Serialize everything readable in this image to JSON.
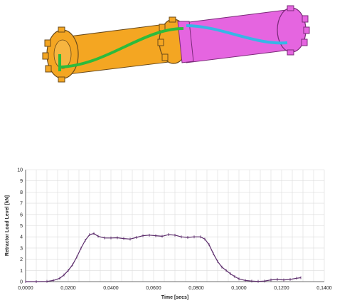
{
  "illustration": {
    "subject": "retractor-spool-assembly",
    "colors": {
      "left_body": "#f4a622",
      "right_body": "#e565e0",
      "strap_green": "#2dbb3c",
      "strap_blue": "#36b6e6",
      "outline": "#6a4a1a"
    }
  },
  "chart_data": {
    "type": "line",
    "title": "",
    "xlabel": "Time [secs]",
    "ylabel": "Retractor Load Level [kN]",
    "xlim": [
      0,
      0.14
    ],
    "ylim": [
      0,
      10
    ],
    "x_ticks": [
      0,
      0.02,
      0.04,
      0.06,
      0.08,
      0.1,
      0.12,
      0.14
    ],
    "x_tick_labels": [
      "0,0000",
      "0,0200",
      "0,0400",
      "0,0600",
      "0,0800",
      "0,1000",
      "0,1200",
      "0,1400"
    ],
    "y_ticks": [
      0,
      1,
      2,
      3,
      4,
      5,
      6,
      7,
      8,
      9,
      10
    ],
    "y_tick_labels": [
      "0",
      "1",
      "2",
      "3",
      "4",
      "5",
      "6",
      "7",
      "8",
      "9",
      "10"
    ],
    "grid": true,
    "line_color": "#5a2a6a",
    "series": [
      {
        "x": [
          0,
          0.005,
          0.01,
          0.013,
          0.016,
          0.018,
          0.02,
          0.022,
          0.024,
          0.026,
          0.028,
          0.03,
          0.032,
          0.034,
          0.037,
          0.04,
          0.043,
          0.046,
          0.049,
          0.052,
          0.055,
          0.058,
          0.061,
          0.064,
          0.067,
          0.07,
          0.073,
          0.076,
          0.079,
          0.082,
          0.084,
          0.086,
          0.088,
          0.09,
          0.092,
          0.094,
          0.096,
          0.098,
          0.1,
          0.103,
          0.106,
          0.109,
          0.112,
          0.115,
          0.118,
          0.121,
          0.124,
          0.127,
          0.129
        ],
        "y": [
          0,
          0,
          0.02,
          0.1,
          0.3,
          0.6,
          1.0,
          1.5,
          2.2,
          3.0,
          3.7,
          4.2,
          4.3,
          4.05,
          3.9,
          3.9,
          3.92,
          3.85,
          3.8,
          3.95,
          4.1,
          4.15,
          4.1,
          4.05,
          4.2,
          4.15,
          4.0,
          3.95,
          4.0,
          4.0,
          3.8,
          3.3,
          2.5,
          1.8,
          1.3,
          1.0,
          0.7,
          0.45,
          0.25,
          0.1,
          0.05,
          0.02,
          0.05,
          0.15,
          0.2,
          0.15,
          0.2,
          0.3,
          0.35
        ]
      }
    ]
  }
}
